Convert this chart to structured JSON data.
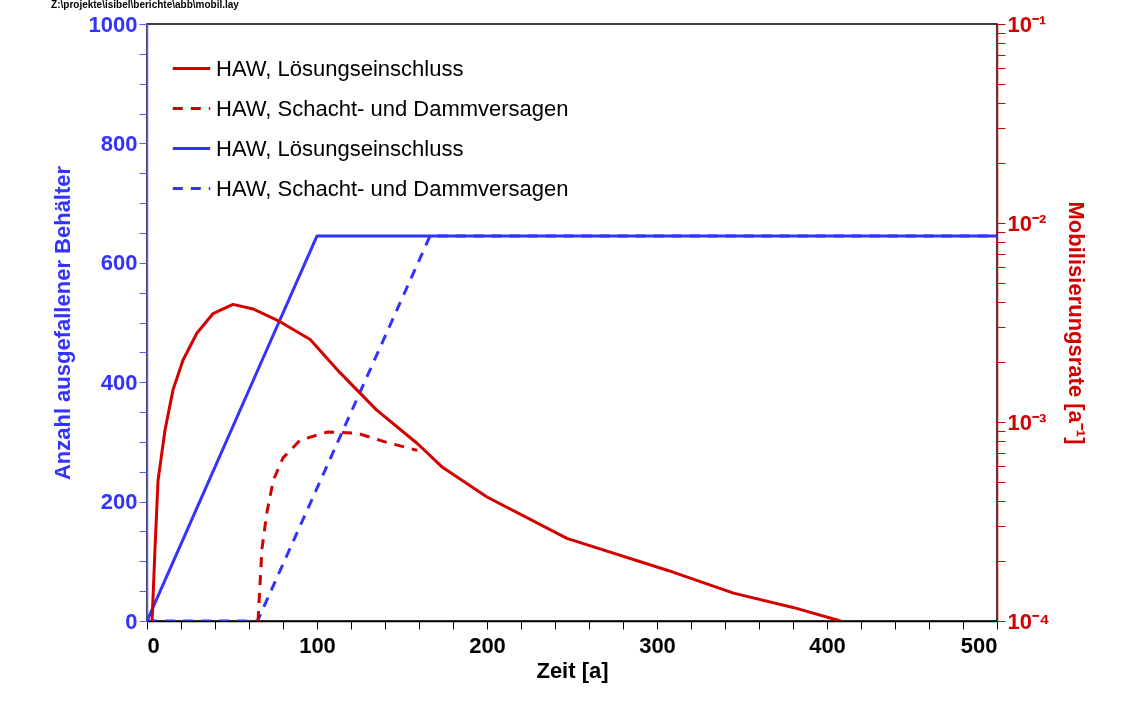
{
  "chart_data": {
    "type": "line",
    "xlabel": "Zeit [a]",
    "ylabel": "Anzahl ausgefallener Behälter",
    "y2label": "Mobilisierungsrate [a⁻¹]",
    "annotations": [
      "Z:\\projekte\\isibel\\berichte\\abb\\mobil.lay"
    ],
    "xlim": [
      0,
      500
    ],
    "xticks": [
      0,
      {
        "value": 20,
        "label": null
      },
      {
        "value": 40,
        "label": null
      },
      {
        "value": 60,
        "label": null
      },
      {
        "value": 80,
        "label": null
      },
      100,
      {
        "value": 120,
        "label": null
      },
      {
        "value": 140,
        "label": null
      },
      {
        "value": 160,
        "label": null
      },
      {
        "value": 180,
        "label": null
      },
      200,
      {
        "value": 220,
        "label": null
      },
      {
        "value": 240,
        "label": null
      },
      {
        "value": 260,
        "label": null
      },
      {
        "value": 280,
        "label": null
      },
      300,
      {
        "value": 320,
        "label": null
      },
      {
        "value": 340,
        "label": null
      },
      {
        "value": 360,
        "label": null
      },
      {
        "value": 380,
        "label": null
      },
      400,
      {
        "value": 420,
        "label": null
      },
      {
        "value": 440,
        "label": null
      },
      {
        "value": 460,
        "label": null
      },
      {
        "value": 480,
        "label": null
      },
      500
    ],
    "ylim": [
      0,
      1000
    ],
    "yticks": [
      0,
      {
        "value": 50,
        "label": null
      },
      {
        "value": 100,
        "label": null
      },
      {
        "value": 150,
        "label": null
      },
      200,
      {
        "value": 250,
        "label": null
      },
      {
        "value": 300,
        "label": null
      },
      {
        "value": 350,
        "label": null
      },
      400,
      {
        "value": 450,
        "label": null
      },
      {
        "value": 500,
        "label": null
      },
      {
        "value": 550,
        "label": null
      },
      600,
      {
        "value": 650,
        "label": null
      },
      {
        "value": 700,
        "label": null
      },
      {
        "value": 750,
        "label": null
      },
      800,
      {
        "value": 850,
        "label": null
      },
      {
        "value": 900,
        "label": null
      },
      {
        "value": 950,
        "label": null
      },
      1000
    ],
    "y2lim": [
      0.0001,
      0.1
    ],
    "y2ticks": [
      {
        "value": 0.0001,
        "label": "10⁻⁴"
      },
      {
        "value": 0.0002,
        "label": null
      },
      {
        "value": 0.0003,
        "label": null
      },
      {
        "value": 0.0004,
        "label": null
      },
      {
        "value": 0.0005,
        "label": null
      },
      {
        "value": 0.0006,
        "label": null
      },
      {
        "value": 0.0007,
        "label": null
      },
      {
        "value": 0.0008,
        "label": null
      },
      {
        "value": 0.0009,
        "label": null
      },
      {
        "value": 0.001,
        "label": "10⁻³"
      },
      {
        "value": 0.002,
        "label": null
      },
      {
        "value": 0.003,
        "label": null
      },
      {
        "value": 0.004,
        "label": null
      },
      {
        "value": 0.005,
        "label": null
      },
      {
        "value": 0.006,
        "label": null
      },
      {
        "value": 0.007,
        "label": null
      },
      {
        "value": 0.008,
        "label": null
      },
      {
        "value": 0.009,
        "label": null
      },
      {
        "value": 0.01,
        "label": "10⁻²"
      },
      {
        "value": 0.02,
        "label": null
      },
      {
        "value": 0.03,
        "label": null
      },
      {
        "value": 0.04,
        "label": null
      },
      {
        "value": 0.05,
        "label": null
      },
      {
        "value": 0.06,
        "label": null
      },
      {
        "value": 0.07,
        "label": null
      },
      {
        "value": 0.08,
        "label": null
      },
      {
        "value": 0.09,
        "label": null
      },
      {
        "value": 0.1,
        "label": "10⁻¹"
      }
    ],
    "log": "y2",
    "grid": false,
    "legend": "top left",
    "marker": "none",
    "series": [
      {
        "name": "HAW, Lösungseinschluss",
        "color": "#d40000",
        "axis": "y2",
        "line_style": "solid",
        "x": [
          3,
          4.7,
          6.5,
          10.6,
          15.3,
          21.2,
          29.4,
          38.8,
          50.6,
          62.4,
          78,
          96,
          113.5,
          135,
          159,
          174,
          200,
          247,
          306,
          345,
          380,
          408
        ],
        "values": [
          0.0001,
          0.00023,
          0.00051,
          0.00091,
          0.00145,
          0.00205,
          0.0028,
          0.0035,
          0.0039,
          0.0037,
          0.0032,
          0.0026,
          0.00177,
          0.00115,
          0.00078,
          0.00059,
          0.00042,
          0.00026,
          0.00018,
          0.000138,
          0.000117,
          0.0001
        ]
      },
      {
        "name": "HAW, Schacht- und Dammversagen",
        "color": "#d40000",
        "axis": "y2",
        "line_style": "dashed",
        "x": [
          65.3,
          67.6,
          70.5,
          74.3,
          80,
          90,
          106,
          123.5,
          141,
          159
        ],
        "values": [
          0.0001,
          0.00023,
          0.00035,
          0.00051,
          0.00066,
          0.00081,
          0.00089,
          0.00088,
          0.00079,
          0.00072
        ]
      },
      {
        "name": "HAW, Lösungseinschluss",
        "color": "#3333ff",
        "line_style": "solid",
        "x": [
          0,
          100,
          500
        ],
        "values": [
          0,
          645,
          645
        ]
      },
      {
        "name": "HAW, Schacht- und Dammversagen",
        "color": "#3333ff",
        "line_style": "dashed",
        "x": [
          0,
          65,
          166.5,
          500
        ],
        "values": [
          0,
          0,
          645,
          645
        ]
      }
    ]
  }
}
